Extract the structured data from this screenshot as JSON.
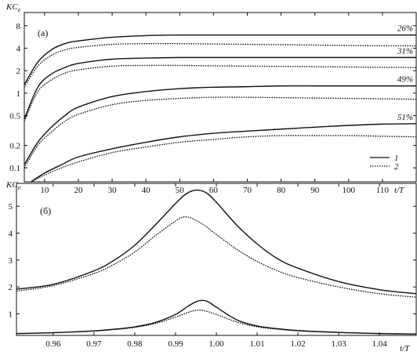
{
  "chart_data": [
    {
      "type": "line",
      "panel_label": "(a)",
      "ylabel": "KC",
      "ylabel_sub": "e",
      "xlabel": "t/T",
      "yscale": "log",
      "xlim": [
        4,
        120
      ],
      "ylim": [
        0.065,
        12
      ],
      "xticks": [
        10,
        20,
        30,
        40,
        50,
        60,
        70,
        80,
        90,
        100,
        110
      ],
      "yticks": [
        0.1,
        0.2,
        0.5,
        1,
        2,
        4,
        8
      ],
      "ytick_labels": [
        "0.1",
        "0.2",
        "0.5",
        "1",
        "2",
        "4",
        "8"
      ],
      "legend": {
        "position": "right",
        "entries": [
          {
            "label": "1",
            "style": "solid"
          },
          {
            "label": "2",
            "style": "dotted"
          }
        ]
      },
      "groups": [
        {
          "annotation": "26%",
          "series": [
            {
              "key": "1",
              "x": [
                4,
                8,
                12,
                16,
                20,
                30,
                40,
                50,
                60,
                70,
                80,
                90,
                100,
                110,
                120
              ],
              "y": [
                1.3,
                2.6,
                3.8,
                4.6,
                5.0,
                5.6,
                5.9,
                6.0,
                6.0,
                6.0,
                6.0,
                6.0,
                6.0,
                6.0,
                6.0
              ]
            },
            {
              "key": "2",
              "x": [
                4,
                8,
                12,
                16,
                20,
                30,
                40,
                50,
                60,
                70,
                80,
                90,
                100,
                110,
                120
              ],
              "y": [
                1.2,
                2.3,
                3.2,
                3.8,
                4.1,
                4.5,
                4.6,
                4.6,
                4.55,
                4.5,
                4.45,
                4.4,
                4.35,
                4.3,
                4.3
              ]
            }
          ]
        },
        {
          "annotation": "31%",
          "series": [
            {
              "key": "1",
              "x": [
                4,
                8,
                12,
                16,
                20,
                30,
                40,
                50,
                60,
                70,
                80,
                90,
                100,
                110,
                120
              ],
              "y": [
                0.45,
                1.2,
                1.8,
                2.2,
                2.5,
                2.85,
                2.95,
                3.0,
                3.0,
                3.0,
                3.0,
                3.0,
                3.0,
                3.0,
                3.0
              ]
            },
            {
              "key": "2",
              "x": [
                4,
                8,
                12,
                16,
                20,
                30,
                40,
                50,
                60,
                70,
                80,
                90,
                100,
                110,
                120
              ],
              "y": [
                0.42,
                1.05,
                1.5,
                1.85,
                2.05,
                2.3,
                2.35,
                2.35,
                2.32,
                2.3,
                2.28,
                2.26,
                2.24,
                2.22,
                2.2
              ]
            }
          ]
        },
        {
          "annotation": "49%",
          "series": [
            {
              "key": "1",
              "x": [
                4,
                8,
                12,
                16,
                20,
                30,
                40,
                50,
                60,
                70,
                80,
                90,
                100,
                110,
                120
              ],
              "y": [
                0.11,
                0.22,
                0.35,
                0.5,
                0.65,
                0.9,
                1.05,
                1.15,
                1.2,
                1.22,
                1.25,
                1.25,
                1.25,
                1.25,
                1.25
              ]
            },
            {
              "key": "2",
              "x": [
                4,
                8,
                12,
                16,
                20,
                30,
                40,
                50,
                60,
                70,
                80,
                90,
                100,
                110,
                120
              ],
              "y": [
                0.1,
                0.2,
                0.3,
                0.42,
                0.52,
                0.7,
                0.8,
                0.85,
                0.88,
                0.88,
                0.87,
                0.86,
                0.85,
                0.84,
                0.83
              ]
            }
          ]
        },
        {
          "annotation": "51%",
          "series": [
            {
              "key": "1",
              "x": [
                6,
                10,
                15,
                20,
                30,
                40,
                50,
                60,
                70,
                80,
                90,
                100,
                110,
                120
              ],
              "y": [
                0.065,
                0.085,
                0.11,
                0.14,
                0.18,
                0.22,
                0.26,
                0.29,
                0.31,
                0.33,
                0.35,
                0.37,
                0.385,
                0.39
              ]
            },
            {
              "key": "2",
              "x": [
                6,
                10,
                15,
                20,
                30,
                40,
                50,
                60,
                70,
                80,
                90,
                100,
                110,
                120
              ],
              "y": [
                0.065,
                0.08,
                0.1,
                0.12,
                0.16,
                0.19,
                0.22,
                0.24,
                0.26,
                0.27,
                0.27,
                0.27,
                0.265,
                0.26
              ]
            }
          ]
        }
      ]
    },
    {
      "type": "line",
      "panel_label": "(б)",
      "ylabel": "KC",
      "ylabel_sub": "e",
      "xlabel": "t/T",
      "xlim": [
        0.951,
        1.049
      ],
      "ylim": [
        0.2,
        5.85
      ],
      "xticks": [
        0.96,
        0.97,
        0.98,
        0.99,
        1.0,
        1.01,
        1.02,
        1.03,
        1.04
      ],
      "xtick_labels": [
        "0.96",
        "0.97",
        "0.98",
        "0.99",
        "1.00",
        "1.01",
        "1.02",
        "1.03",
        "1.04"
      ],
      "yticks": [
        1,
        2,
        3,
        4,
        5
      ],
      "groups": [
        {
          "series": [
            {
              "key": "1",
              "x": [
                0.951,
                0.96,
                0.97,
                0.975,
                0.98,
                0.985,
                0.99,
                0.9925,
                0.995,
                0.9975,
                1.0,
                1.005,
                1.01,
                1.015,
                1.02,
                1.03,
                1.04,
                1.049
              ],
              "y": [
                1.92,
                2.1,
                2.6,
                3.0,
                3.55,
                4.3,
                5.1,
                5.45,
                5.6,
                5.5,
                5.15,
                4.3,
                3.6,
                3.05,
                2.7,
                2.2,
                1.9,
                1.75
              ]
            },
            {
              "key": "2",
              "x": [
                0.951,
                0.96,
                0.97,
                0.975,
                0.98,
                0.985,
                0.99,
                0.992,
                0.994,
                0.997,
                1.0,
                1.005,
                1.01,
                1.015,
                1.02,
                1.03,
                1.04,
                1.049
              ],
              "y": [
                1.85,
                2.05,
                2.5,
                2.85,
                3.3,
                3.9,
                4.45,
                4.6,
                4.55,
                4.3,
                3.95,
                3.4,
                2.95,
                2.6,
                2.35,
                2.0,
                1.75,
                1.62
              ]
            }
          ]
        },
        {
          "series": [
            {
              "key": "1",
              "x": [
                0.951,
                0.96,
                0.97,
                0.975,
                0.98,
                0.985,
                0.99,
                0.993,
                0.995,
                0.9965,
                0.998,
                1.0,
                1.005,
                1.01,
                1.015,
                1.02,
                1.03,
                1.04,
                1.049
              ],
              "y": [
                0.27,
                0.3,
                0.37,
                0.43,
                0.52,
                0.68,
                0.98,
                1.28,
                1.45,
                1.5,
                1.45,
                1.25,
                0.78,
                0.55,
                0.45,
                0.38,
                0.31,
                0.27,
                0.25
              ]
            },
            {
              "key": "2",
              "x": [
                0.951,
                0.96,
                0.97,
                0.975,
                0.98,
                0.985,
                0.99,
                0.993,
                0.995,
                0.997,
                1.0,
                1.005,
                1.01,
                1.015,
                1.02,
                1.03,
                1.04,
                1.049
              ],
              "y": [
                0.27,
                0.3,
                0.36,
                0.42,
                0.5,
                0.64,
                0.88,
                1.05,
                1.13,
                1.12,
                0.98,
                0.7,
                0.52,
                0.43,
                0.37,
                0.31,
                0.27,
                0.25
              ]
            }
          ]
        }
      ]
    }
  ]
}
